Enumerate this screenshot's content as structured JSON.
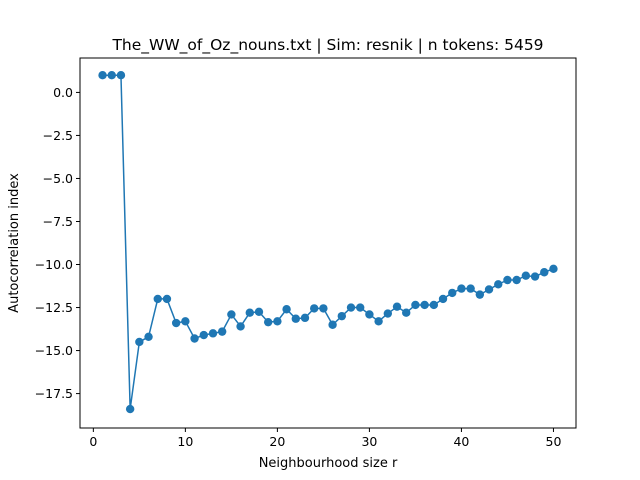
{
  "chart_data": {
    "type": "line",
    "title": "The_WW_of_Oz_nouns.txt | Sim: resnik | n tokens: 5459",
    "xlabel": "Neighbourhood size r",
    "ylabel": "Autocorrelation index",
    "xlim": [
      -1.45,
      52.45
    ],
    "ylim": [
      -19.5,
      2.0
    ],
    "xticks": [
      0,
      10,
      20,
      30,
      40,
      50
    ],
    "yticks": [
      0.0,
      -2.5,
      -5.0,
      -7.5,
      -10.0,
      -12.5,
      -15.0,
      -17.5
    ],
    "xtick_labels": [
      "0",
      "10",
      "20",
      "30",
      "40",
      "50"
    ],
    "ytick_labels": [
      "0.0",
      "−2.5",
      "−5.0",
      "−7.5",
      "−10.0",
      "−12.5",
      "−15.0",
      "−17.5"
    ],
    "grid": false,
    "markers": true,
    "color": "#1f77b4",
    "series": [
      {
        "x": [
          1,
          2,
          3,
          4,
          5,
          6,
          7,
          8,
          9,
          10,
          11,
          12,
          13,
          14,
          15,
          16,
          17,
          18,
          19,
          20,
          21,
          22,
          23,
          24,
          25,
          26,
          27,
          28,
          29,
          30,
          31,
          32,
          33,
          34,
          35,
          36,
          37,
          38,
          39,
          40,
          41,
          42,
          43,
          44,
          45,
          46,
          47,
          48,
          49,
          50
        ],
        "y": [
          1.0,
          1.0,
          1.0,
          -18.4,
          -14.5,
          -14.2,
          -12.0,
          -12.0,
          -13.4,
          -13.3,
          -14.3,
          -14.1,
          -14.0,
          -13.9,
          -12.9,
          -13.6,
          -12.8,
          -12.75,
          -13.35,
          -13.3,
          -12.6,
          -13.15,
          -13.1,
          -12.55,
          -12.55,
          -13.5,
          -13.0,
          -12.5,
          -12.5,
          -12.9,
          -13.3,
          -12.85,
          -12.45,
          -12.8,
          -12.35,
          -12.35,
          -12.35,
          -12.0,
          -11.65,
          -11.4,
          -11.4,
          -11.75,
          -11.45,
          -11.15,
          -10.9,
          -10.9,
          -10.65,
          -10.7,
          -10.45,
          -10.25
        ]
      }
    ]
  }
}
